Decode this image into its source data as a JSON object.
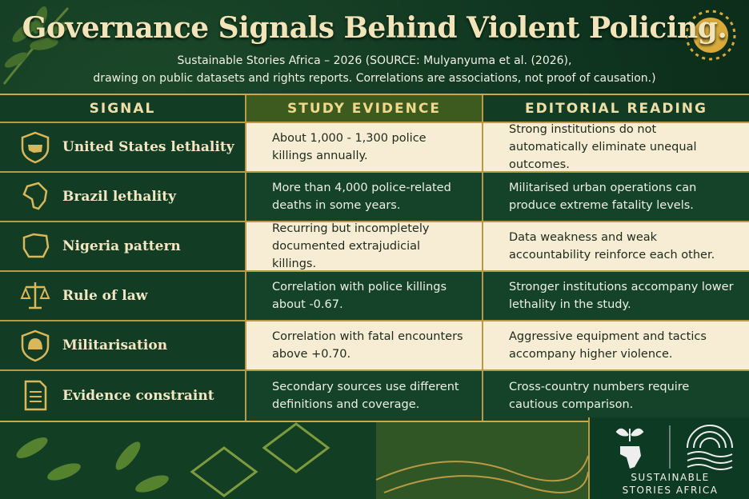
{
  "header": {
    "title": "Governance Signals Behind Violent Policing.",
    "subtitle": [
      "Sustainable Stories Africa – 2026 (SOURCE: Mulyanyuma et al. (2026),",
      "drawing on public datasets and rights reports. Correlations are associations, not proof of causation.)"
    ]
  },
  "table": {
    "columns": [
      "SIGNAL",
      "STUDY EVIDENCE",
      "EDITORIAL READING"
    ],
    "rows": [
      [
        "United States lethality",
        "About 1,000 - 1,300 police killings annually.",
        "Strong institutions do not automatically eliminate unequal outcomes."
      ],
      [
        "Brazil lethality",
        "More than 4,000 police-related deaths in some years.",
        "Militarised urban operations can produce extreme fatality levels."
      ],
      [
        "Nigeria pattern",
        "Recurring but incompletely documented extrajudicial killings.",
        "Data weakness and weak accountability reinforce each other."
      ],
      [
        "Rule of law",
        "Correlation with police killings about -0.67.",
        "Stronger institutions accompany lower lethality in the study."
      ],
      [
        "Militarisation",
        "Correlation with fatal encounters above +0.70.",
        "Aggressive equipment and tactics accompany higher violence."
      ],
      [
        "Evidence constraint",
        "Secondary sources use different definitions and coverage.",
        "Cross-country numbers require cautious comparison."
      ]
    ]
  },
  "logo": {
    "lines": [
      "SUSTAINABLE",
      "STORIES AFRICA"
    ]
  }
}
